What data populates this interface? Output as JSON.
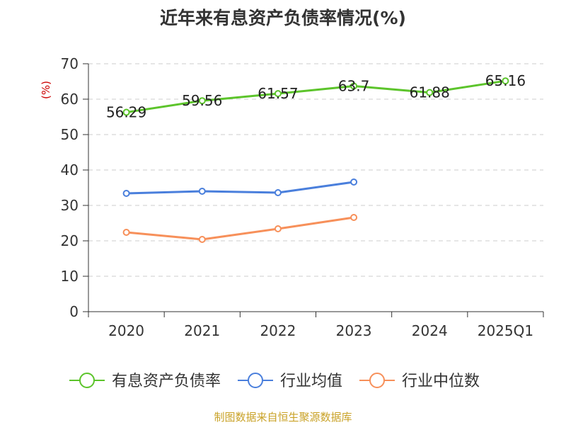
{
  "chart_data": {
    "type": "line",
    "title": "近年来有息资产负债率情况(%)",
    "ylabel": "(%)",
    "xlabel": "",
    "categories": [
      "2020",
      "2021",
      "2022",
      "2023",
      "2024",
      "2025Q1"
    ],
    "ylim": [
      0,
      70
    ],
    "yticks": [
      0,
      10,
      20,
      30,
      40,
      50,
      60,
      70
    ],
    "grid": true,
    "legend_position": "bottom",
    "series": [
      {
        "name": "有息资产负债率",
        "color": "#5cc42b",
        "values": [
          56.29,
          59.56,
          61.57,
          63.7,
          61.88,
          65.16
        ],
        "labels": [
          "56.29",
          "59.56",
          "61.57",
          "63.7",
          "61.88",
          "65.16"
        ]
      },
      {
        "name": "行业均值",
        "color": "#4a7fdc",
        "values": [
          33.4,
          34.0,
          33.6,
          36.6,
          null,
          null
        ]
      },
      {
        "name": "行业中位数",
        "color": "#f7905a",
        "values": [
          22.4,
          20.4,
          23.4,
          26.6,
          null,
          null
        ]
      }
    ]
  },
  "source": "制图数据来自恒生聚源数据库"
}
